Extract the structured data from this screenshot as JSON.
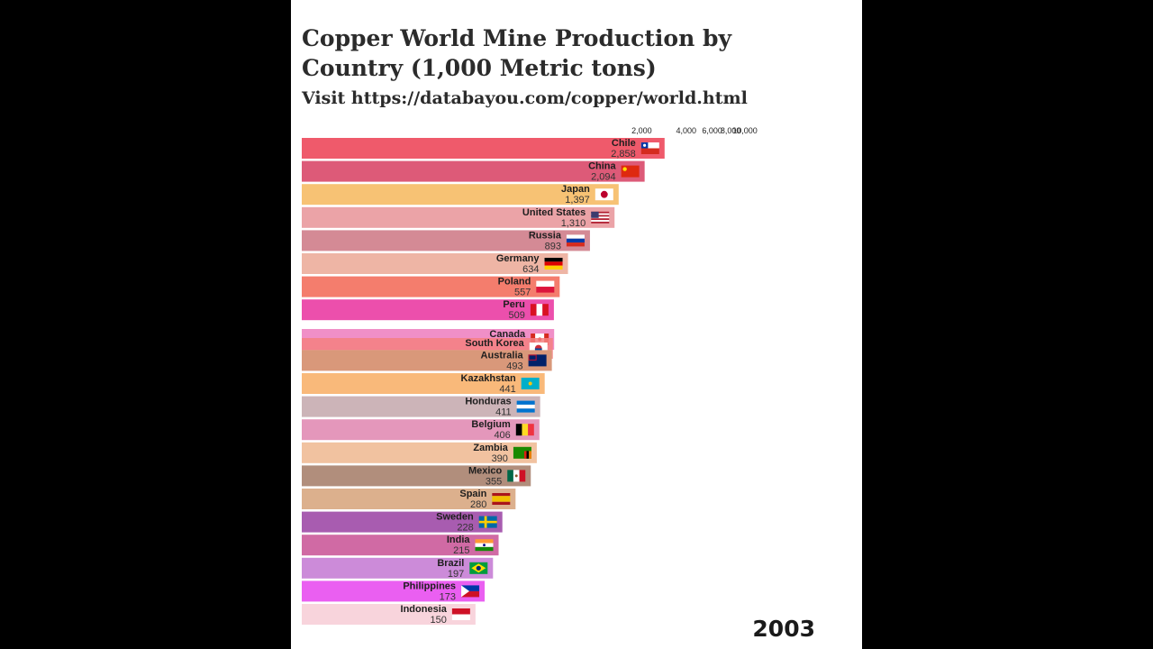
{
  "title": "Copper World Mine Production by Country (1,000 Metric tons)",
  "subtitle": "Visit https://databayou.com/copper/world.html",
  "year": "2003",
  "chart_data": {
    "type": "bar",
    "orientation": "horizontal",
    "title": "Copper World Mine Production by Country (1,000 Metric tons)",
    "scale": "log",
    "xlim": [
      10,
      10000
    ],
    "ticks": [
      {
        "value": 2000,
        "label": "2,000"
      },
      {
        "value": 4000,
        "label": "4,000"
      },
      {
        "value": 6000,
        "label": "6,000"
      },
      {
        "value": 8000,
        "label": "8,000"
      },
      {
        "value": 10000,
        "label": "10,000"
      }
    ],
    "bars": [
      {
        "country": "Chile",
        "value": 2858,
        "label": "2,858",
        "color": "#ef5a6b",
        "flag": "chile-flag"
      },
      {
        "country": "China",
        "value": 2094,
        "label": "2,094",
        "color": "#dd5a78",
        "flag": "china-flag"
      },
      {
        "country": "Japan",
        "value": 1397,
        "label": "1,397",
        "color": "#f7c274",
        "flag": "japan-flag"
      },
      {
        "country": "United States",
        "value": 1310,
        "label": "1,310",
        "color": "#eba3a7",
        "flag": "usa-flag"
      },
      {
        "country": "Russia",
        "value": 893,
        "label": "893",
        "color": "#d48a95",
        "flag": "russia-flag"
      },
      {
        "country": "Germany",
        "value": 634,
        "label": "634",
        "color": "#eeb5a5",
        "flag": "germany-flag"
      },
      {
        "country": "Poland",
        "value": 557,
        "label": "557",
        "color": "#f47d6d",
        "flag": "poland-flag"
      },
      {
        "country": "Peru",
        "value": 509,
        "label": "509",
        "color": "#ec4fac",
        "flag": "peru-flag"
      },
      {
        "country": "Canada",
        "value": 511,
        "label": "",
        "color": "#f08fc7",
        "flag": "canada-flag"
      },
      {
        "country": "South Korea",
        "value": 501,
        "label": "501",
        "color": "#f48080",
        "flag": "south-korea-flag"
      },
      {
        "country": "Australia",
        "value": 493,
        "label": "493",
        "color": "#d9987a",
        "flag": "australia-flag"
      },
      {
        "country": "Kazakhstan",
        "value": 441,
        "label": "441",
        "color": "#f9b97a",
        "flag": "kazakhstan-flag"
      },
      {
        "country": "Honduras",
        "value": 411,
        "label": "411",
        "color": "#ccb4b8",
        "flag": "honduras-flag"
      },
      {
        "country": "Belgium",
        "value": 406,
        "label": "406",
        "color": "#e497bb",
        "flag": "belgium-flag"
      },
      {
        "country": "Zambia",
        "value": 390,
        "label": "390",
        "color": "#f1c2a0",
        "flag": "zambia-flag"
      },
      {
        "country": "Mexico",
        "value": 355,
        "label": "355",
        "color": "#b18e7c",
        "flag": "mexico-flag"
      },
      {
        "country": "Spain",
        "value": 280,
        "label": "280",
        "color": "#dcb08d",
        "flag": "spain-flag"
      },
      {
        "country": "Sweden",
        "value": 228,
        "label": "228",
        "color": "#a85cb0",
        "flag": "sweden-flag"
      },
      {
        "country": "India",
        "value": 215,
        "label": "215",
        "color": "#d06aa4",
        "flag": "india-flag"
      },
      {
        "country": "Brazil",
        "value": 197,
        "label": "197",
        "color": "#cc8bd9",
        "flag": "brazil-flag"
      },
      {
        "country": "Philippines",
        "value": 173,
        "label": "173",
        "color": "#ea5ff1",
        "flag": "philippines-flag"
      },
      {
        "country": "Indonesia",
        "value": 150,
        "label": "150",
        "color": "#f8d4dc",
        "flag": "indonesia-flag"
      }
    ]
  }
}
